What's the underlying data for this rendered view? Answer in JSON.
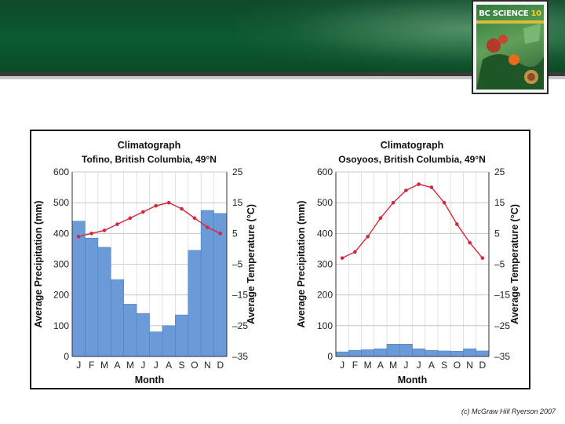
{
  "book": {
    "title_main": "BC SCIENCE ",
    "title_num": "10"
  },
  "copyright": "(c) McGraw Hill Ryerson 2007",
  "chart_data": [
    {
      "type": "bar+line",
      "heading": "Climatograph",
      "title": "Tofino, British Columbia, 49°N",
      "xlabel": "Month",
      "ylabel_left": "Average Precipitation (mm)",
      "ylabel_right": "Average Temperature (°C)",
      "categories": [
        "J",
        "F",
        "M",
        "A",
        "M",
        "J",
        "J",
        "A",
        "S",
        "O",
        "N",
        "D"
      ],
      "left_ticks": [
        "600",
        "500",
        "400",
        "300",
        "200",
        "100",
        "0"
      ],
      "right_ticks": [
        "25",
        "15",
        "5",
        "–5",
        "–15",
        "–25",
        "–35"
      ],
      "ylim_left": [
        0,
        600
      ],
      "ylim_right": [
        -35,
        25
      ],
      "series": [
        {
          "kind": "bar",
          "color": "#6a9bd8",
          "values": [
            440,
            385,
            355,
            250,
            170,
            140,
            80,
            100,
            135,
            345,
            475,
            465
          ]
        },
        {
          "kind": "line",
          "color": "#d4283a",
          "values": [
            4,
            5,
            6,
            8,
            10,
            12,
            14,
            15,
            13,
            10,
            7,
            5
          ]
        }
      ],
      "grid": true
    },
    {
      "type": "bar+line",
      "heading": "Climatograph",
      "title": "Osoyoos, British Columbia, 49°N",
      "xlabel": "Month",
      "ylabel_left": "Average Precipitation (mm)",
      "ylabel_right": "Average Temperature (°C)",
      "categories": [
        "J",
        "F",
        "M",
        "A",
        "M",
        "J",
        "J",
        "A",
        "S",
        "O",
        "N",
        "D"
      ],
      "left_ticks": [
        "600",
        "500",
        "400",
        "300",
        "200",
        "100",
        "0"
      ],
      "right_ticks": [
        "25",
        "15",
        "5",
        "–5",
        "–15",
        "–25",
        "–35"
      ],
      "ylim_left": [
        0,
        600
      ],
      "ylim_right": [
        -35,
        25
      ],
      "series": [
        {
          "kind": "bar",
          "color": "#6a9bd8",
          "values": [
            15,
            20,
            22,
            25,
            40,
            40,
            25,
            20,
            18,
            17,
            25,
            18
          ]
        },
        {
          "kind": "line",
          "color": "#d4283a",
          "values": [
            -3,
            -1,
            4,
            10,
            15,
            19,
            21,
            20,
            15,
            8,
            2,
            -3
          ]
        }
      ],
      "grid": true
    }
  ]
}
